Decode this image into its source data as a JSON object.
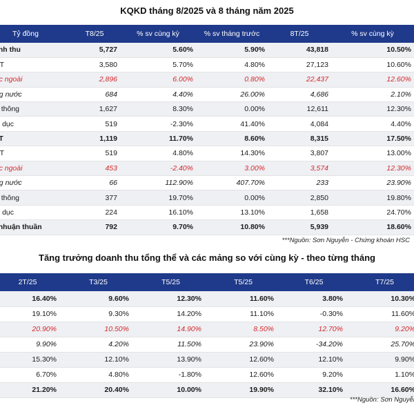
{
  "table1": {
    "title": "KQKD tháng 8/2025 và 8 tháng năm 2025",
    "headers": [
      "Tỷ đồng",
      "T8/25",
      "% sv cùng kỳ",
      "% sv tháng trước",
      "8T/25",
      "% sv cùng kỳ"
    ],
    "rows": [
      {
        "cells": [
          "Doanh thu",
          "5,727",
          "5.60%",
          "5.90%",
          "43,818",
          "10.50%"
        ],
        "style": "bold"
      },
      {
        "cells": [
          "CNTT",
          "3,580",
          "5.70%",
          "4.80%",
          "27,123",
          "10.60%"
        ],
        "style": ""
      },
      {
        "cells": [
          "Nước ngoài",
          "2,896",
          "6.00%",
          "0.80%",
          "22,437",
          "12.60%"
        ],
        "style": "red"
      },
      {
        "cells": [
          "Trong nước",
          "684",
          "4.40%",
          "26.00%",
          "4,686",
          "2.10%"
        ],
        "style": "ital"
      },
      {
        "cells": [
          "Viễn thông",
          "1,627",
          "8.30%",
          "0.00%",
          "12,611",
          "12.30%"
        ],
        "style": ""
      },
      {
        "cells": [
          "Giáo dục",
          "519",
          "-2.30%",
          "41.40%",
          "4,084",
          "4.40%"
        ],
        "style": ""
      },
      {
        "cells": [
          "LNTT",
          "1,119",
          "11.70%",
          "8.60%",
          "8,315",
          "17.50%"
        ],
        "style": "bold"
      },
      {
        "cells": [
          "CNTT",
          "519",
          "4.80%",
          "14.30%",
          "3,807",
          "13.00%"
        ],
        "style": ""
      },
      {
        "cells": [
          "Nước ngoài",
          "453",
          "-2.40%",
          "3.00%",
          "3,574",
          "12.30%"
        ],
        "style": "red"
      },
      {
        "cells": [
          "Trong nước",
          "66",
          "112.90%",
          "407.70%",
          "233",
          "23.90%"
        ],
        "style": "ital"
      },
      {
        "cells": [
          "Viễn thông",
          "377",
          "19.70%",
          "0.00%",
          "2,850",
          "19.80%"
        ],
        "style": ""
      },
      {
        "cells": [
          "Giáo dục",
          "224",
          "16.10%",
          "13.10%",
          "1,658",
          "24.70%"
        ],
        "style": ""
      },
      {
        "cells": [
          "Lợi nhuận thuần",
          "792",
          "9.70%",
          "10.80%",
          "5,939",
          "18.60%"
        ],
        "style": "bold"
      }
    ],
    "source": "***Nguồn: Sơn Nguyễn - Chứng khoán HSC"
  },
  "table2": {
    "title": "Tăng trưởng doanh thu tổng thể và các mảng so với cùng kỳ - theo từng tháng",
    "headers": [
      "2T/25",
      "T3/25",
      "T5/25",
      "T5/25",
      "T6/25",
      "T7/25"
    ],
    "rows": [
      {
        "cells": [
          "16.40%",
          "9.60%",
          "12.30%",
          "11.60%",
          "3.80%",
          "10.30%"
        ],
        "style": "bold"
      },
      {
        "cells": [
          "19.10%",
          "9.30%",
          "14.20%",
          "11.10%",
          "-0.30%",
          "11.60%"
        ],
        "style": ""
      },
      {
        "cells": [
          "20.90%",
          "10.50%",
          "14.90%",
          "8.50%",
          "12.70%",
          "9.20%"
        ],
        "style": "red"
      },
      {
        "cells": [
          "9.90%",
          "4.20%",
          "11.50%",
          "23.90%",
          "-34.20%",
          "25.70%"
        ],
        "style": "ital"
      },
      {
        "cells": [
          "15.30%",
          "12.10%",
          "13.90%",
          "12.60%",
          "12.10%",
          "9.90%"
        ],
        "style": ""
      },
      {
        "cells": [
          "6.70%",
          "4.80%",
          "-1.80%",
          "12.60%",
          "9.20%",
          "1.10%"
        ],
        "style": ""
      },
      {
        "cells": [
          "21.20%",
          "20.40%",
          "10.00%",
          "19.90%",
          "32.10%",
          "16.60%"
        ],
        "style": "bold"
      }
    ],
    "source": "***Nguồn: Sơn Nguyễn"
  }
}
